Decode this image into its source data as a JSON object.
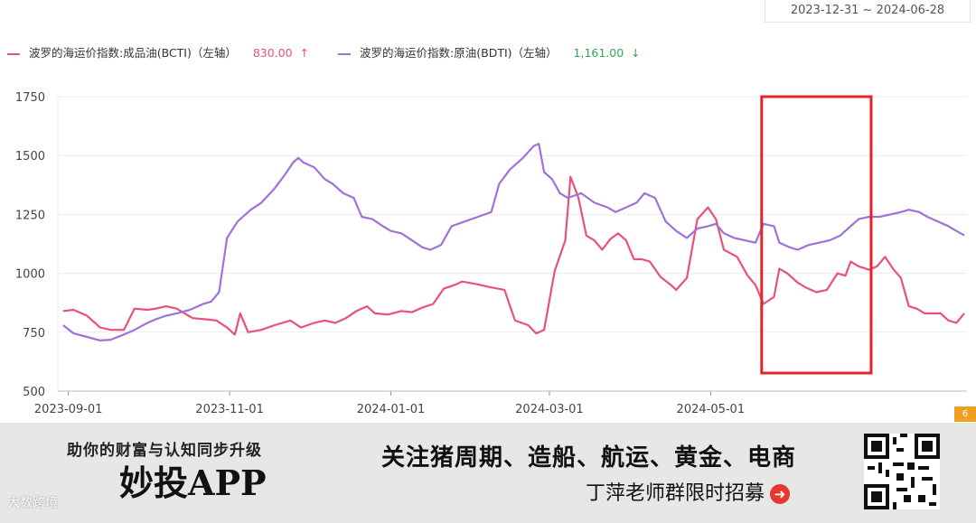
{
  "date_range": {
    "start": "2023-12-31",
    "sep": "~",
    "end": "2024-06-28"
  },
  "legend": [
    {
      "label": "波罗的海运价指数:成品油(BCTI)（左轴）",
      "value": "830.00",
      "trend": "↑",
      "color": "#e8527a",
      "value_color": "#e8527a"
    },
    {
      "label": "波罗的海运价指数:原油(BDTI)（左轴）",
      "value": "1,161.00",
      "trend": "↓",
      "color": "#a070dc",
      "value_color": "#3aa356"
    }
  ],
  "highlight_color": "#e0242a",
  "corner_badge": "6",
  "chart_data": {
    "type": "line",
    "x_ticks": [
      "2023-09-01",
      "2023-11-01",
      "2024-01-01",
      "2024-03-01",
      "2024-05-01"
    ],
    "ylim": [
      500,
      1750
    ],
    "y_ticks": [
      500,
      750,
      1000,
      1250,
      1500,
      1750
    ],
    "grid": true,
    "legend_position": "top-left",
    "highlight_range": {
      "x": [
        "2024-05-21",
        "2024-06-28"
      ]
    },
    "series": [
      {
        "name": "波罗的海运价指数:成品油(BCTI)（左轴）",
        "color": "#e8527a",
        "points": [
          [
            "2023-08-30",
            840
          ],
          [
            "2023-09-03",
            845
          ],
          [
            "2023-09-08",
            820
          ],
          [
            "2023-09-13",
            770
          ],
          [
            "2023-09-17",
            760
          ],
          [
            "2023-09-22",
            760
          ],
          [
            "2023-09-26",
            850
          ],
          [
            "2023-10-01",
            845
          ],
          [
            "2023-10-04",
            850
          ],
          [
            "2023-10-08",
            860
          ],
          [
            "2023-10-12",
            850
          ],
          [
            "2023-10-18",
            810
          ],
          [
            "2023-10-23",
            805
          ],
          [
            "2023-10-27",
            800
          ],
          [
            "2023-10-31",
            770
          ],
          [
            "2023-11-03",
            740
          ],
          [
            "2023-11-05",
            830
          ],
          [
            "2023-11-08",
            750
          ],
          [
            "2023-11-13",
            760
          ],
          [
            "2023-11-18",
            780
          ],
          [
            "2023-11-24",
            800
          ],
          [
            "2023-11-28",
            770
          ],
          [
            "2023-12-03",
            790
          ],
          [
            "2023-12-07",
            800
          ],
          [
            "2023-12-11",
            790
          ],
          [
            "2023-12-15",
            810
          ],
          [
            "2023-12-19",
            840
          ],
          [
            "2023-12-23",
            860
          ],
          [
            "2023-12-26",
            830
          ],
          [
            "2023-12-31",
            825
          ],
          [
            "2024-01-05",
            840
          ],
          [
            "2024-01-09",
            835
          ],
          [
            "2024-01-13",
            855
          ],
          [
            "2024-01-17",
            870
          ],
          [
            "2024-01-21",
            935
          ],
          [
            "2024-01-25",
            950
          ],
          [
            "2024-01-28",
            965
          ],
          [
            "2024-02-02",
            955
          ],
          [
            "2024-02-08",
            940
          ],
          [
            "2024-02-13",
            930
          ],
          [
            "2024-02-17",
            800
          ],
          [
            "2024-02-22",
            780
          ],
          [
            "2024-02-25",
            745
          ],
          [
            "2024-02-28",
            760
          ],
          [
            "2024-03-03",
            1010
          ],
          [
            "2024-03-07",
            1140
          ],
          [
            "2024-03-09",
            1410
          ],
          [
            "2024-03-12",
            1320
          ],
          [
            "2024-03-15",
            1160
          ],
          [
            "2024-03-18",
            1140
          ],
          [
            "2024-03-21",
            1100
          ],
          [
            "2024-03-24",
            1145
          ],
          [
            "2024-03-27",
            1170
          ],
          [
            "2024-03-30",
            1140
          ],
          [
            "2024-04-02",
            1060
          ],
          [
            "2024-04-05",
            1060
          ],
          [
            "2024-04-08",
            1050
          ],
          [
            "2024-04-12",
            985
          ],
          [
            "2024-04-16",
            950
          ],
          [
            "2024-04-18",
            930
          ],
          [
            "2024-04-22",
            980
          ],
          [
            "2024-04-26",
            1230
          ],
          [
            "2024-04-30",
            1280
          ],
          [
            "2024-05-03",
            1230
          ],
          [
            "2024-05-06",
            1100
          ],
          [
            "2024-05-11",
            1070
          ],
          [
            "2024-05-15",
            990
          ],
          [
            "2024-05-18",
            950
          ],
          [
            "2024-05-21",
            870
          ],
          [
            "2024-05-25",
            900
          ],
          [
            "2024-05-27",
            1020
          ],
          [
            "2024-05-30",
            1000
          ],
          [
            "2024-06-03",
            960
          ],
          [
            "2024-06-06",
            940
          ],
          [
            "2024-06-10",
            920
          ],
          [
            "2024-06-14",
            930
          ],
          [
            "2024-06-18",
            1000
          ],
          [
            "2024-06-21",
            990
          ],
          [
            "2024-06-23",
            1050
          ],
          [
            "2024-06-26",
            1030
          ],
          [
            "2024-06-30",
            1015
          ],
          [
            "2024-07-03",
            1030
          ],
          [
            "2024-07-06",
            1070
          ],
          [
            "2024-07-09",
            1020
          ],
          [
            "2024-07-12",
            980
          ],
          [
            "2024-07-15",
            860
          ],
          [
            "2024-07-18",
            850
          ],
          [
            "2024-07-21",
            830
          ],
          [
            "2024-07-24",
            830
          ],
          [
            "2024-07-27",
            830
          ],
          [
            "2024-07-30",
            800
          ],
          [
            "2024-08-02",
            790
          ],
          [
            "2024-08-05",
            830
          ]
        ]
      },
      {
        "name": "波罗的海运价指数:原油(BDTI)（左轴）",
        "color": "#a070dc",
        "points": [
          [
            "2023-08-30",
            780
          ],
          [
            "2023-09-03",
            745
          ],
          [
            "2023-09-08",
            730
          ],
          [
            "2023-09-13",
            715
          ],
          [
            "2023-09-17",
            718
          ],
          [
            "2023-09-22",
            740
          ],
          [
            "2023-09-26",
            760
          ],
          [
            "2023-10-01",
            790
          ],
          [
            "2023-10-04",
            805
          ],
          [
            "2023-10-08",
            820
          ],
          [
            "2023-10-12",
            830
          ],
          [
            "2023-10-17",
            845
          ],
          [
            "2023-10-22",
            870
          ],
          [
            "2023-10-25",
            880
          ],
          [
            "2023-10-28",
            920
          ],
          [
            "2023-10-31",
            1150
          ],
          [
            "2023-11-04",
            1220
          ],
          [
            "2023-11-09",
            1270
          ],
          [
            "2023-11-13",
            1300
          ],
          [
            "2023-11-18",
            1360
          ],
          [
            "2023-11-22",
            1420
          ],
          [
            "2023-11-25",
            1470
          ],
          [
            "2023-11-27",
            1490
          ],
          [
            "2023-11-29",
            1470
          ],
          [
            "2023-12-03",
            1450
          ],
          [
            "2023-12-07",
            1400
          ],
          [
            "2023-12-10",
            1380
          ],
          [
            "2023-12-14",
            1340
          ],
          [
            "2023-12-18",
            1320
          ],
          [
            "2023-12-21",
            1240
          ],
          [
            "2023-12-25",
            1230
          ],
          [
            "2023-12-29",
            1200
          ],
          [
            "2024-01-01",
            1180
          ],
          [
            "2024-01-05",
            1170
          ],
          [
            "2024-01-09",
            1140
          ],
          [
            "2024-01-13",
            1110
          ],
          [
            "2024-01-16",
            1100
          ],
          [
            "2024-01-20",
            1120
          ],
          [
            "2024-01-24",
            1200
          ],
          [
            "2024-01-29",
            1220
          ],
          [
            "2024-02-03",
            1240
          ],
          [
            "2024-02-08",
            1260
          ],
          [
            "2024-02-11",
            1380
          ],
          [
            "2024-02-15",
            1440
          ],
          [
            "2024-02-20",
            1490
          ],
          [
            "2024-02-24",
            1540
          ],
          [
            "2024-02-26",
            1550
          ],
          [
            "2024-02-28",
            1430
          ],
          [
            "2024-03-02",
            1400
          ],
          [
            "2024-03-05",
            1340
          ],
          [
            "2024-03-08",
            1320
          ],
          [
            "2024-03-13",
            1340
          ],
          [
            "2024-03-18",
            1300
          ],
          [
            "2024-03-23",
            1280
          ],
          [
            "2024-03-26",
            1260
          ],
          [
            "2024-03-30",
            1280
          ],
          [
            "2024-04-03",
            1300
          ],
          [
            "2024-04-06",
            1340
          ],
          [
            "2024-04-10",
            1320
          ],
          [
            "2024-04-14",
            1220
          ],
          [
            "2024-04-18",
            1180
          ],
          [
            "2024-04-22",
            1150
          ],
          [
            "2024-04-26",
            1190
          ],
          [
            "2024-04-30",
            1200
          ],
          [
            "2024-05-03",
            1210
          ],
          [
            "2024-05-06",
            1170
          ],
          [
            "2024-05-10",
            1150
          ],
          [
            "2024-05-14",
            1140
          ],
          [
            "2024-05-18",
            1130
          ],
          [
            "2024-05-21",
            1210
          ],
          [
            "2024-05-25",
            1200
          ],
          [
            "2024-05-27",
            1130
          ],
          [
            "2024-05-31",
            1110
          ],
          [
            "2024-06-03",
            1100
          ],
          [
            "2024-06-07",
            1120
          ],
          [
            "2024-06-11",
            1130
          ],
          [
            "2024-06-15",
            1140
          ],
          [
            "2024-06-19",
            1160
          ],
          [
            "2024-06-22",
            1190
          ],
          [
            "2024-06-26",
            1230
          ],
          [
            "2024-06-30",
            1240
          ],
          [
            "2024-07-04",
            1240
          ],
          [
            "2024-07-08",
            1250
          ],
          [
            "2024-07-12",
            1260
          ],
          [
            "2024-07-15",
            1270
          ],
          [
            "2024-07-19",
            1260
          ],
          [
            "2024-07-22",
            1240
          ],
          [
            "2024-07-26",
            1220
          ],
          [
            "2024-07-30",
            1200
          ],
          [
            "2024-08-02",
            1180
          ],
          [
            "2024-08-05",
            1161
          ]
        ]
      }
    ]
  },
  "banner": {
    "slogan": "助你的财富与认知同步升级",
    "app_name": "妙投APP",
    "headline": "关注猪周期、造船、航运、黄金、电商",
    "subline": "丁萍老师群限时招募",
    "logo_text": "大数跨境"
  }
}
